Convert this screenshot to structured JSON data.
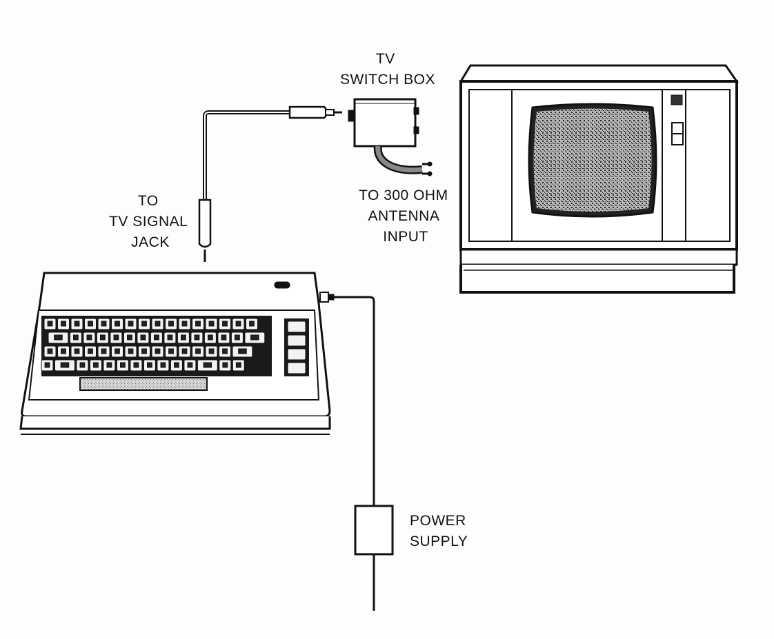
{
  "labels": {
    "switch_box": [
      "TV",
      "SWITCH BOX"
    ],
    "antenna": [
      "TO 300 OHM",
      "ANTENNA",
      "INPUT"
    ],
    "signal_jack": [
      "TO",
      "TV SIGNAL",
      "JACK"
    ],
    "power_supply": [
      "POWER",
      "SUPPLY"
    ]
  },
  "colors": {
    "ink": "#111111",
    "paper": "#fdfdfd",
    "screen": "#9a9a9a"
  }
}
